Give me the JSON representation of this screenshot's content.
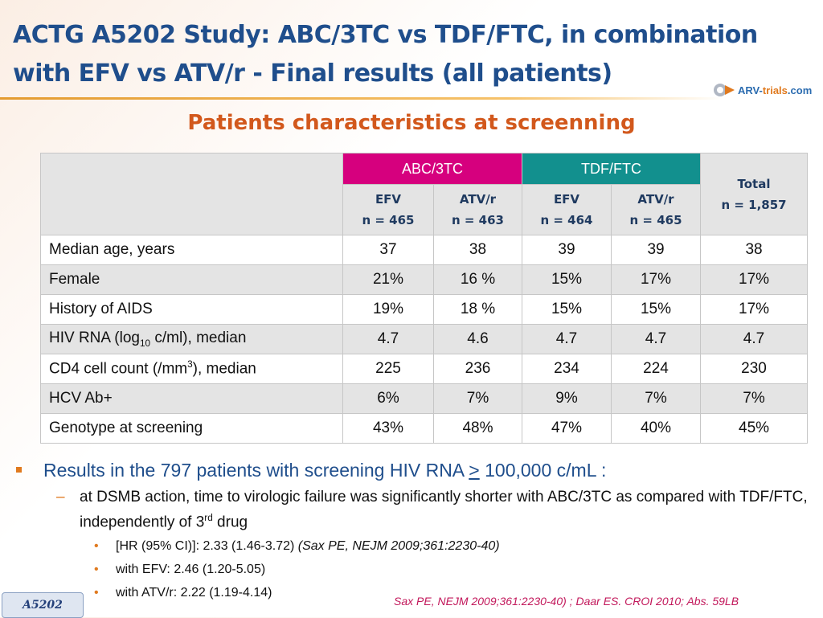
{
  "header": {
    "title_line1": "ACTG A5202 Study: ABC/3TC vs TDF/FTC, in combination",
    "title_line2": "with EFV vs ATV/r - Final results (all patients)"
  },
  "logo": {
    "part1": "ARV-",
    "part2": "trials",
    "part3": ".com"
  },
  "subtitle": "Patients characteristics at screenning",
  "table": {
    "groups": [
      {
        "label": "ABC/3TC",
        "color": "#d6007e"
      },
      {
        "label": "TDF/FTC",
        "color": "#12908e"
      }
    ],
    "arms": [
      {
        "drug": "EFV",
        "n": "n = 465"
      },
      {
        "drug": "ATV/r",
        "n": "n = 463"
      },
      {
        "drug": "EFV",
        "n": "n = 464"
      },
      {
        "drug": "ATV/r",
        "n": "n = 465"
      }
    ],
    "total": {
      "label": "Total",
      "n": "n = 1,857"
    },
    "rows": [
      {
        "label": "Median age, years",
        "values": [
          "37",
          "38",
          "39",
          "39",
          "38"
        ]
      },
      {
        "label": "Female",
        "values": [
          "21%",
          "16 %",
          "15%",
          "17%",
          "17%"
        ]
      },
      {
        "label": "History of AIDS",
        "values": [
          "19%",
          "18 %",
          "15%",
          "15%",
          "17%"
        ]
      },
      {
        "label_pre": "HIV RNA (log",
        "label_sub": "10",
        "label_post": " c/ml), median",
        "values": [
          "4.7",
          "4.6",
          "4.7",
          "4.7",
          "4.7"
        ]
      },
      {
        "label_pre": "CD4 cell count (/mm",
        "label_sup": "3",
        "label_post": "), median",
        "values": [
          "225",
          "236",
          "234",
          "224",
          "230"
        ]
      },
      {
        "label": "HCV Ab+",
        "values": [
          "6%",
          "7%",
          "9%",
          "7%",
          "7%"
        ]
      },
      {
        "label": "Genotype at screening",
        "values": [
          "43%",
          "48%",
          "47%",
          "40%",
          "45%"
        ]
      }
    ]
  },
  "bullets": {
    "main_pre": "Results in the 797 patients with screening HIV RNA ",
    "main_symbol": ">",
    "main_post": " 100,000 c/mL :",
    "sub_pre": "at DSMB action, time to virologic failure was significantly shorter with ABC/3TC as compared with TDF/FTC, independently of 3",
    "sub_sup": "rd",
    "sub_post": " drug",
    "items": [
      {
        "text": "[HR (95% CI)]: 2.33 (1.46-3.72) ",
        "cite": "(Sax PE, NEJM 2009;361:2230-40)"
      },
      {
        "text": "with EFV: 2.46 (1.20-5.05)",
        "cite": ""
      },
      {
        "text": "with ATV/r: 2.22 (1.19-4.14)",
        "cite": ""
      }
    ]
  },
  "footer": {
    "citation": "Sax PE, NEJM 2009;361:2230-40) ; Daar ES. CROI 2010; Abs. 59LB",
    "study_badge": "A5202"
  }
}
